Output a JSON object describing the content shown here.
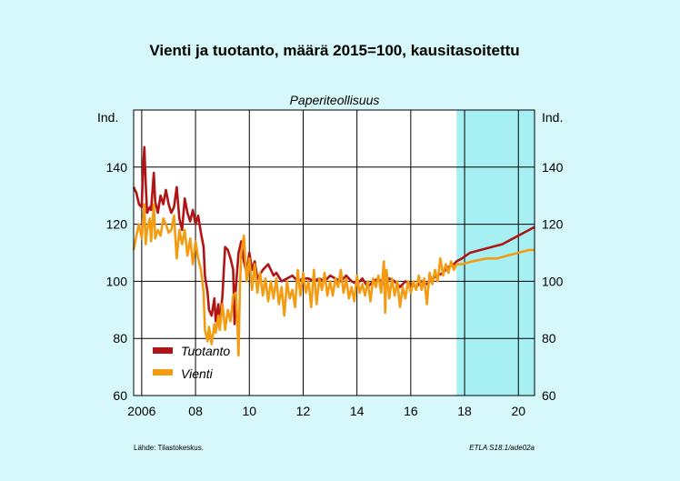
{
  "chart_data": {
    "type": "line",
    "title": "Vienti ja tuotanto, määrä 2015=100, kausitasoitettu",
    "subtitle": "Paperiteollisuus",
    "ylabel_left": "Ind.",
    "ylabel_right": "Ind.",
    "ylim": [
      60,
      160
    ],
    "yticks": [
      60,
      80,
      100,
      120,
      140
    ],
    "xlim": [
      2005.7,
      2020.6
    ],
    "xticks": [
      {
        "x": 2006,
        "label": "2006"
      },
      {
        "x": 2008,
        "label": "08"
      },
      {
        "x": 2010,
        "label": "10"
      },
      {
        "x": 2012,
        "label": "12"
      },
      {
        "x": 2014,
        "label": "14"
      },
      {
        "x": 2016,
        "label": "16"
      },
      {
        "x": 2018,
        "label": "18"
      },
      {
        "x": 2020,
        "label": "20"
      }
    ],
    "forecast_start": 2017.7,
    "grid": true,
    "legend_position": "lower-left",
    "series": [
      {
        "name": "Tuotanto",
        "color": "#b01414",
        "points": [
          [
            2005.7,
            133
          ],
          [
            2005.8,
            131
          ],
          [
            2005.9,
            127
          ],
          [
            2006.0,
            126
          ],
          [
            2006.05,
            140
          ],
          [
            2006.1,
            147
          ],
          [
            2006.15,
            134
          ],
          [
            2006.2,
            124
          ],
          [
            2006.3,
            126
          ],
          [
            2006.35,
            125
          ],
          [
            2006.45,
            138
          ],
          [
            2006.5,
            128
          ],
          [
            2006.6,
            124
          ],
          [
            2006.7,
            130
          ],
          [
            2006.8,
            127
          ],
          [
            2006.9,
            132
          ],
          [
            2007.0,
            127
          ],
          [
            2007.1,
            124
          ],
          [
            2007.2,
            126
          ],
          [
            2007.3,
            133
          ],
          [
            2007.4,
            122
          ],
          [
            2007.5,
            118
          ],
          [
            2007.6,
            129
          ],
          [
            2007.7,
            124
          ],
          [
            2007.8,
            121
          ],
          [
            2007.9,
            125
          ],
          [
            2008.0,
            120
          ],
          [
            2008.1,
            123
          ],
          [
            2008.2,
            117
          ],
          [
            2008.3,
            112
          ],
          [
            2008.35,
            102
          ],
          [
            2008.45,
            96
          ],
          [
            2008.5,
            90
          ],
          [
            2008.6,
            88
          ],
          [
            2008.7,
            94
          ],
          [
            2008.75,
            86
          ],
          [
            2008.85,
            92
          ],
          [
            2008.9,
            85
          ],
          [
            2009.0,
            95
          ],
          [
            2009.1,
            112
          ],
          [
            2009.2,
            111
          ],
          [
            2009.3,
            108
          ],
          [
            2009.4,
            104
          ],
          [
            2009.45,
            85
          ],
          [
            2009.5,
            98
          ],
          [
            2009.6,
            110
          ],
          [
            2009.7,
            114
          ],
          [
            2009.8,
            107
          ],
          [
            2009.9,
            103
          ],
          [
            2010.0,
            110
          ],
          [
            2010.1,
            104
          ],
          [
            2010.2,
            107
          ],
          [
            2010.3,
            101
          ],
          [
            2010.5,
            104
          ],
          [
            2010.7,
            106
          ],
          [
            2010.9,
            102
          ],
          [
            2011.0,
            103
          ],
          [
            2011.2,
            100
          ],
          [
            2011.4,
            101
          ],
          [
            2011.6,
            102
          ],
          [
            2011.8,
            100
          ],
          [
            2012.0,
            101
          ],
          [
            2012.2,
            101
          ],
          [
            2012.4,
            100
          ],
          [
            2012.6,
            101
          ],
          [
            2012.8,
            100
          ],
          [
            2013.0,
            102
          ],
          [
            2013.2,
            101
          ],
          [
            2013.4,
            100
          ],
          [
            2013.6,
            102
          ],
          [
            2013.8,
            100
          ],
          [
            2014.0,
            99
          ],
          [
            2014.2,
            101
          ],
          [
            2014.4,
            98
          ],
          [
            2014.6,
            100
          ],
          [
            2014.8,
            101
          ],
          [
            2015.0,
            99
          ],
          [
            2015.2,
            101
          ],
          [
            2015.4,
            100
          ],
          [
            2015.6,
            98
          ],
          [
            2015.8,
            100
          ],
          [
            2016.0,
            99
          ],
          [
            2016.2,
            98
          ],
          [
            2016.4,
            100
          ],
          [
            2016.6,
            99
          ],
          [
            2016.8,
            101
          ],
          [
            2017.0,
            102
          ],
          [
            2017.2,
            103
          ],
          [
            2017.4,
            105
          ],
          [
            2017.6,
            106
          ],
          [
            2017.7,
            107
          ],
          [
            2017.9,
            108
          ],
          [
            2018.2,
            110
          ],
          [
            2018.6,
            111
          ],
          [
            2019.0,
            112
          ],
          [
            2019.4,
            113
          ],
          [
            2019.8,
            115
          ],
          [
            2020.2,
            117
          ],
          [
            2020.6,
            119
          ]
        ]
      },
      {
        "name": "Vienti",
        "color": "#f39c12",
        "points": [
          [
            2005.7,
            111
          ],
          [
            2005.8,
            116
          ],
          [
            2005.9,
            120
          ],
          [
            2006.0,
            115
          ],
          [
            2006.1,
            127
          ],
          [
            2006.15,
            113
          ],
          [
            2006.2,
            118
          ],
          [
            2006.3,
            122
          ],
          [
            2006.35,
            114
          ],
          [
            2006.45,
            127
          ],
          [
            2006.5,
            115
          ],
          [
            2006.6,
            118
          ],
          [
            2006.7,
            116
          ],
          [
            2006.8,
            122
          ],
          [
            2006.9,
            120
          ],
          [
            2007.0,
            117
          ],
          [
            2007.1,
            118
          ],
          [
            2007.2,
            123
          ],
          [
            2007.3,
            108
          ],
          [
            2007.4,
            118
          ],
          [
            2007.5,
            113
          ],
          [
            2007.6,
            118
          ],
          [
            2007.7,
            109
          ],
          [
            2007.8,
            115
          ],
          [
            2007.9,
            106
          ],
          [
            2008.0,
            114
          ],
          [
            2008.1,
            108
          ],
          [
            2008.2,
            104
          ],
          [
            2008.3,
            96
          ],
          [
            2008.35,
            83
          ],
          [
            2008.45,
            79
          ],
          [
            2008.5,
            84
          ],
          [
            2008.6,
            78
          ],
          [
            2008.7,
            85
          ],
          [
            2008.75,
            82
          ],
          [
            2008.85,
            88
          ],
          [
            2008.9,
            83
          ],
          [
            2009.0,
            92
          ],
          [
            2009.1,
            83
          ],
          [
            2009.2,
            90
          ],
          [
            2009.3,
            86
          ],
          [
            2009.4,
            95
          ],
          [
            2009.5,
            96
          ],
          [
            2009.55,
            87
          ],
          [
            2009.6,
            74
          ],
          [
            2009.65,
            98
          ],
          [
            2009.7,
            110
          ],
          [
            2009.8,
            116
          ],
          [
            2009.9,
            100
          ],
          [
            2010.0,
            108
          ],
          [
            2010.1,
            97
          ],
          [
            2010.2,
            106
          ],
          [
            2010.3,
            96
          ],
          [
            2010.4,
            103
          ],
          [
            2010.5,
            95
          ],
          [
            2010.6,
            101
          ],
          [
            2010.7,
            93
          ],
          [
            2010.8,
            100
          ],
          [
            2010.9,
            94
          ],
          [
            2011.0,
            101
          ],
          [
            2011.1,
            92
          ],
          [
            2011.2,
            98
          ],
          [
            2011.3,
            88
          ],
          [
            2011.4,
            100
          ],
          [
            2011.5,
            94
          ],
          [
            2011.6,
            97
          ],
          [
            2011.7,
            91
          ],
          [
            2011.8,
            104
          ],
          [
            2011.9,
            95
          ],
          [
            2012.0,
            103
          ],
          [
            2012.1,
            96
          ],
          [
            2012.2,
            100
          ],
          [
            2012.3,
            91
          ],
          [
            2012.4,
            104
          ],
          [
            2012.5,
            92
          ],
          [
            2012.6,
            101
          ],
          [
            2012.7,
            97
          ],
          [
            2012.8,
            103
          ],
          [
            2012.9,
            95
          ],
          [
            2013.0,
            100
          ],
          [
            2013.1,
            95
          ],
          [
            2013.2,
            101
          ],
          [
            2013.3,
            98
          ],
          [
            2013.4,
            104
          ],
          [
            2013.5,
            96
          ],
          [
            2013.6,
            101
          ],
          [
            2013.7,
            94
          ],
          [
            2013.8,
            98
          ],
          [
            2013.9,
            93
          ],
          [
            2014.0,
            102
          ],
          [
            2014.1,
            96
          ],
          [
            2014.2,
            99
          ],
          [
            2014.3,
            95
          ],
          [
            2014.4,
            100
          ],
          [
            2014.5,
            93
          ],
          [
            2014.6,
            101
          ],
          [
            2014.7,
            98
          ],
          [
            2014.8,
            102
          ],
          [
            2014.9,
            96
          ],
          [
            2015.0,
            107
          ],
          [
            2015.05,
            89
          ],
          [
            2015.1,
            104
          ],
          [
            2015.2,
            94
          ],
          [
            2015.3,
            101
          ],
          [
            2015.4,
            95
          ],
          [
            2015.5,
            100
          ],
          [
            2015.6,
            91
          ],
          [
            2015.7,
            98
          ],
          [
            2015.8,
            94
          ],
          [
            2015.9,
            100
          ],
          [
            2016.0,
            96
          ],
          [
            2016.1,
            100
          ],
          [
            2016.2,
            97
          ],
          [
            2016.3,
            102
          ],
          [
            2016.4,
            97
          ],
          [
            2016.5,
            101
          ],
          [
            2016.6,
            92
          ],
          [
            2016.7,
            103
          ],
          [
            2016.8,
            99
          ],
          [
            2016.9,
            104
          ],
          [
            2017.0,
            100
          ],
          [
            2017.1,
            108
          ],
          [
            2017.2,
            102
          ],
          [
            2017.3,
            106
          ],
          [
            2017.4,
            103
          ],
          [
            2017.5,
            107
          ],
          [
            2017.6,
            104
          ],
          [
            2017.7,
            106
          ],
          [
            2017.9,
            106
          ],
          [
            2018.3,
            107
          ],
          [
            2018.8,
            108
          ],
          [
            2019.2,
            108
          ],
          [
            2019.6,
            109
          ],
          [
            2020.0,
            110
          ],
          [
            2020.4,
            111
          ],
          [
            2020.6,
            111
          ]
        ]
      }
    ]
  },
  "footer": {
    "source": "Lähde:   Tilastokeskus.",
    "code": "ETLA S18.1/ade02a"
  }
}
